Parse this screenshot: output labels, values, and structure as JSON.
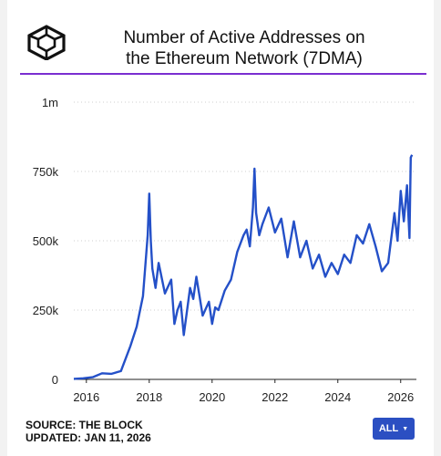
{
  "header": {
    "title_line1": "Number of Active Addresses on",
    "title_line2": "the Ethereum Network (7DMA)"
  },
  "footer": {
    "source": "SOURCE: THE BLOCK",
    "updated": "UPDATED: JAN 11, 2026",
    "range_button": "ALL"
  },
  "icons": {
    "logo": "cube-logo-icon",
    "caret": "caret-down-icon"
  },
  "colors": {
    "line": "#2450c8",
    "accent_rule": "#7a2ed0",
    "button": "#2b4fc2"
  },
  "chart_data": {
    "type": "line",
    "x_ticks": [
      "2016",
      "2018",
      "2020",
      "2022",
      "2024",
      "2026"
    ],
    "y_ticks": [
      "0",
      "250k",
      "500k",
      "750k",
      "1m"
    ],
    "x_range": [
      2015.6,
      2026.5
    ],
    "ylim": [
      0,
      1000000
    ],
    "grid": "horizontal dotted",
    "x": [
      2015.6,
      2015.9,
      2016.2,
      2016.5,
      2016.8,
      2017.1,
      2017.4,
      2017.6,
      2017.8,
      2017.95,
      2018.0,
      2018.05,
      2018.1,
      2018.2,
      2018.3,
      2018.5,
      2018.7,
      2018.8,
      2018.9,
      2019.0,
      2019.1,
      2019.3,
      2019.4,
      2019.5,
      2019.6,
      2019.7,
      2019.9,
      2020.0,
      2020.1,
      2020.2,
      2020.4,
      2020.6,
      2020.8,
      2021.0,
      2021.1,
      2021.2,
      2021.3,
      2021.35,
      2021.4,
      2021.5,
      2021.6,
      2021.8,
      2022.0,
      2022.2,
      2022.4,
      2022.6,
      2022.8,
      2023.0,
      2023.2,
      2023.4,
      2023.6,
      2023.8,
      2024.0,
      2024.2,
      2024.4,
      2024.6,
      2024.8,
      2025.0,
      2025.2,
      2025.4,
      2025.6,
      2025.8,
      2025.9,
      2026.0,
      2026.1,
      2026.2,
      2026.28,
      2026.32,
      2026.36
    ],
    "y": [
      2000,
      4000,
      8000,
      22000,
      20000,
      30000,
      120000,
      190000,
      300000,
      520000,
      670000,
      500000,
      400000,
      330000,
      420000,
      310000,
      360000,
      200000,
      250000,
      280000,
      160000,
      330000,
      290000,
      370000,
      300000,
      230000,
      280000,
      200000,
      260000,
      250000,
      320000,
      360000,
      460000,
      520000,
      540000,
      480000,
      620000,
      760000,
      600000,
      520000,
      560000,
      620000,
      530000,
      580000,
      440000,
      570000,
      440000,
      500000,
      400000,
      450000,
      370000,
      420000,
      380000,
      450000,
      420000,
      520000,
      490000,
      560000,
      480000,
      390000,
      420000,
      600000,
      500000,
      680000,
      570000,
      700000,
      510000,
      800000,
      810000
    ]
  }
}
